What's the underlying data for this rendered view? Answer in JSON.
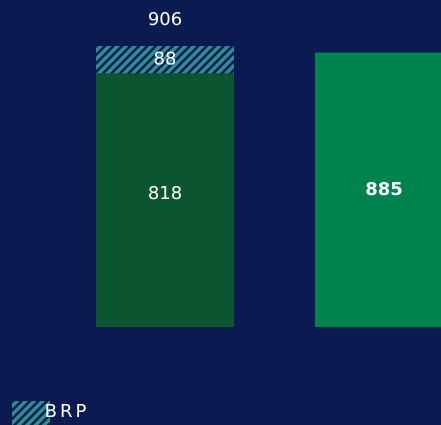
{
  "chart_data": {
    "type": "stacked-bar",
    "categories": [
      null,
      null
    ],
    "series": [
      {
        "colors": [
          "#0b5631",
          "#00834f"
        ],
        "values": [
          818,
          885
        ]
      },
      {
        "name": "BRP",
        "color": "#2f8d8f",
        "values": [
          88,
          null
        ]
      }
    ],
    "totals": [
      906,
      null
    ],
    "legend": "bottom-left"
  }
}
